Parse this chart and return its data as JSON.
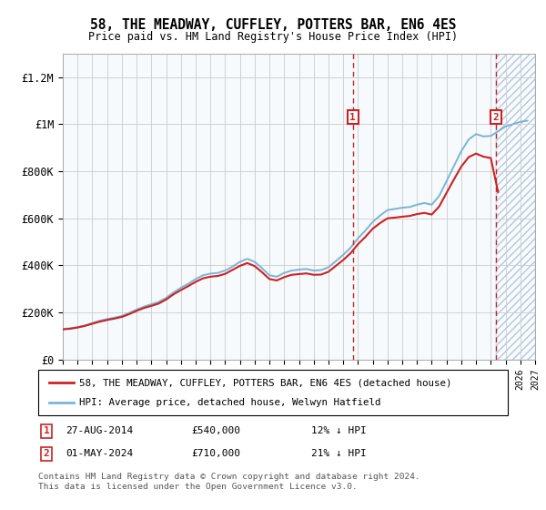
{
  "title": "58, THE MEADWAY, CUFFLEY, POTTERS BAR, EN6 4ES",
  "subtitle": "Price paid vs. HM Land Registry's House Price Index (HPI)",
  "ylim": [
    0,
    1300000
  ],
  "yticks": [
    0,
    200000,
    400000,
    600000,
    800000,
    1000000,
    1200000
  ],
  "ytick_labels": [
    "£0",
    "£200K",
    "£400K",
    "£600K",
    "£800K",
    "£1M",
    "£1.2M"
  ],
  "hpi_color": "#7ab4d8",
  "price_color": "#cc2222",
  "marker1_date": 2014.65,
  "marker1_price": 540000,
  "marker1_hpi": 614000,
  "marker1_label": "27-AUG-2014",
  "marker1_value": "£540,000",
  "marker1_note": "12% ↓ HPI",
  "marker2_date": 2024.33,
  "marker2_price": 710000,
  "marker2_hpi": 898000,
  "marker2_label": "01-MAY-2024",
  "marker2_value": "£710,000",
  "marker2_note": "21% ↓ HPI",
  "legend_line1": "58, THE MEADWAY, CUFFLEY, POTTERS BAR, EN6 4ES (detached house)",
  "legend_line2": "HPI: Average price, detached house, Welwyn Hatfield",
  "footnote": "Contains HM Land Registry data © Crown copyright and database right 2024.\nThis data is licensed under the Open Government Licence v3.0.",
  "xstart": 1995,
  "xend": 2027,
  "hpi_years": [
    1995.0,
    1995.5,
    1996.0,
    1996.5,
    1997.0,
    1997.5,
    1998.0,
    1998.5,
    1999.0,
    1999.5,
    2000.0,
    2000.5,
    2001.0,
    2001.5,
    2002.0,
    2002.5,
    2003.0,
    2003.5,
    2004.0,
    2004.5,
    2005.0,
    2005.5,
    2006.0,
    2006.5,
    2007.0,
    2007.5,
    2008.0,
    2008.5,
    2009.0,
    2009.5,
    2010.0,
    2010.5,
    2011.0,
    2011.5,
    2012.0,
    2012.5,
    2013.0,
    2013.5,
    2014.0,
    2014.5,
    2015.0,
    2015.5,
    2016.0,
    2016.5,
    2017.0,
    2017.5,
    2018.0,
    2018.5,
    2019.0,
    2019.5,
    2020.0,
    2020.5,
    2021.0,
    2021.5,
    2022.0,
    2022.5,
    2023.0,
    2023.5,
    2024.0,
    2024.5,
    2025.0,
    2025.5,
    2026.0,
    2026.5
  ],
  "hpi_values": [
    130000,
    133000,
    138000,
    145000,
    155000,
    165000,
    172000,
    178000,
    185000,
    198000,
    212000,
    225000,
    235000,
    245000,
    262000,
    285000,
    305000,
    322000,
    342000,
    358000,
    365000,
    368000,
    378000,
    395000,
    415000,
    428000,
    415000,
    388000,
    358000,
    352000,
    368000,
    378000,
    382000,
    385000,
    378000,
    380000,
    392000,
    418000,
    445000,
    475000,
    515000,
    548000,
    585000,
    612000,
    635000,
    640000,
    645000,
    648000,
    658000,
    665000,
    658000,
    695000,
    758000,
    822000,
    885000,
    935000,
    958000,
    948000,
    950000,
    970000,
    990000,
    1000000,
    1010000,
    1015000
  ],
  "price_years": [
    1995.0,
    1995.5,
    1996.0,
    1996.5,
    1997.0,
    1997.5,
    1998.0,
    1998.5,
    1999.0,
    1999.5,
    2000.0,
    2000.5,
    2001.0,
    2001.5,
    2002.0,
    2002.5,
    2003.0,
    2003.5,
    2004.0,
    2004.5,
    2005.0,
    2005.5,
    2006.0,
    2006.5,
    2007.0,
    2007.5,
    2008.0,
    2008.5,
    2009.0,
    2009.5,
    2010.0,
    2010.5,
    2011.0,
    2011.5,
    2012.0,
    2012.5,
    2013.0,
    2013.5,
    2014.0,
    2014.5,
    2015.0,
    2015.5,
    2016.0,
    2016.5,
    2017.0,
    2017.5,
    2018.0,
    2018.5,
    2019.0,
    2019.5,
    2020.0,
    2020.5,
    2021.0,
    2021.5,
    2022.0,
    2022.5,
    2023.0,
    2023.5,
    2024.0,
    2024.5
  ],
  "price_values": [
    128000,
    131000,
    136000,
    143000,
    152000,
    161000,
    168000,
    174000,
    181000,
    193000,
    207000,
    219000,
    228000,
    238000,
    255000,
    277000,
    295000,
    312000,
    330000,
    345000,
    352000,
    355000,
    364000,
    381000,
    398000,
    410000,
    397000,
    371000,
    342000,
    336000,
    350000,
    360000,
    363000,
    366000,
    360000,
    361000,
    373000,
    398000,
    423000,
    452000,
    490000,
    521000,
    556000,
    580000,
    600000,
    603000,
    607000,
    610000,
    618000,
    623000,
    616000,
    650000,
    708000,
    765000,
    820000,
    860000,
    875000,
    862000,
    856000,
    710000
  ]
}
